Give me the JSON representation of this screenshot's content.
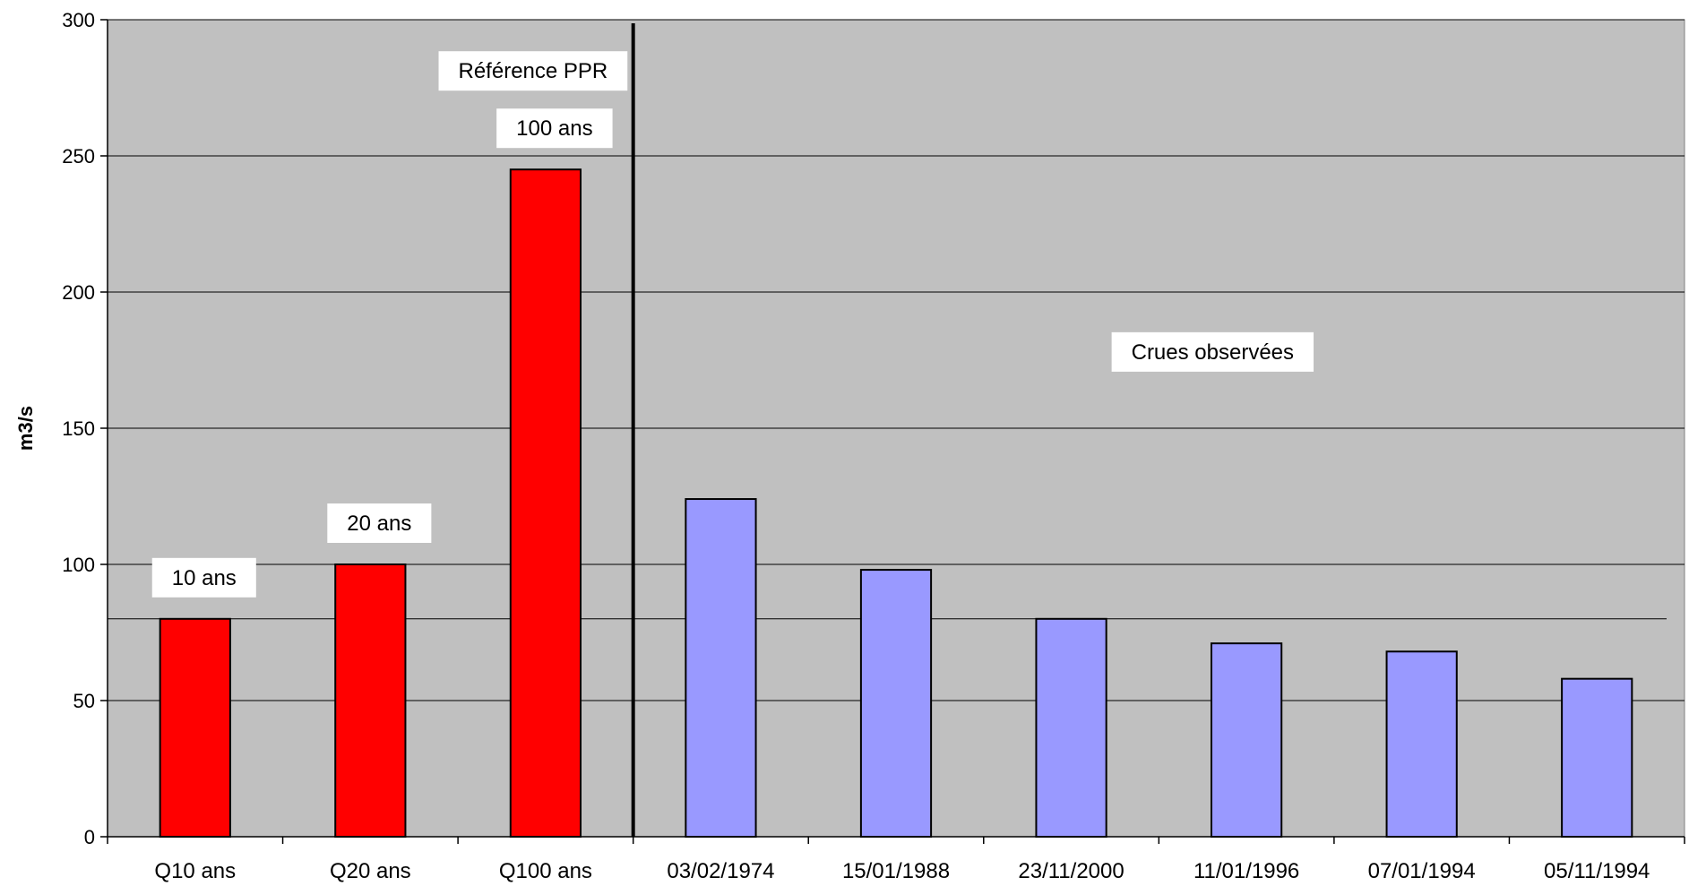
{
  "chart_data": {
    "type": "bar",
    "title": "",
    "xlabel": "",
    "ylabel": "m3/s",
    "ylim": [
      0,
      300
    ],
    "yticks": [
      0,
      50,
      100,
      150,
      200,
      250,
      300
    ],
    "grid": true,
    "categories": [
      "Q10 ans",
      "Q20 ans",
      "Q100 ans",
      "03/02/1974",
      "15/01/1988",
      "23/11/2000",
      "11/01/1996",
      "07/01/1994",
      "05/11/1994"
    ],
    "values": [
      80,
      100,
      245,
      124,
      98,
      80,
      71,
      68,
      58
    ],
    "bar_colors": [
      "#ff0000",
      "#ff0000",
      "#ff0000",
      "#9999ff",
      "#9999ff",
      "#9999ff",
      "#9999ff",
      "#9999ff",
      "#9999ff"
    ],
    "plot_background": "#c0c0c0",
    "reference_line": {
      "value": 80
    },
    "separator_after_category": 2,
    "bar_labels": [
      {
        "category": "Q10 ans",
        "text": "10 ans"
      },
      {
        "category": "Q20 ans",
        "text": "20 ans"
      },
      {
        "category": "Q100 ans",
        "text": "100 ans"
      }
    ],
    "annotations": [
      "Référence PPR",
      "Crues observées"
    ]
  }
}
